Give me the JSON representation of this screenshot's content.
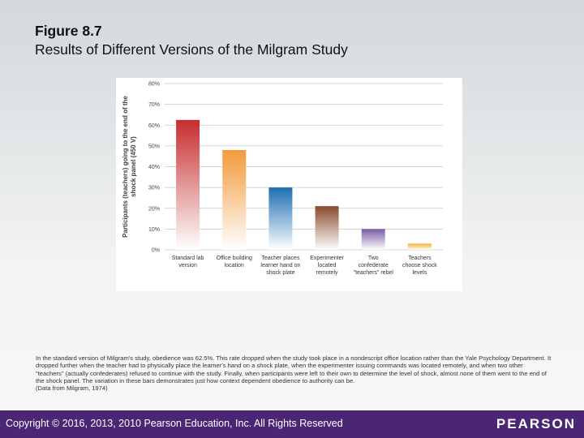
{
  "title": "Figure 8.7",
  "subtitle": "Results of Different Versions of the Milgram Study",
  "chart_data": {
    "type": "bar",
    "ylabel": "Participants (teachers) going to the end of the shock panel (450 V)",
    "ylim": [
      0,
      80
    ],
    "yticks": [
      "0%",
      "10%",
      "20%",
      "30%",
      "40%",
      "50%",
      "60%",
      "70%",
      "80%"
    ],
    "categories": [
      [
        "Standard lab",
        "version"
      ],
      [
        "Office building",
        "location"
      ],
      [
        "Teacher places",
        "learner hand on",
        "shock plate"
      ],
      [
        "Experimenter",
        "located",
        "remotely"
      ],
      [
        "Two",
        "confederate",
        "\"teachers\" rebel"
      ],
      [
        "Teachers",
        "choose shock",
        "levels"
      ]
    ],
    "values": [
      62.5,
      48,
      30,
      21,
      10,
      3
    ],
    "colors": [
      "#c62d2f",
      "#f29a3c",
      "#1f6fb5",
      "#8a4a2f",
      "#7c5aa8",
      "#f2b230"
    ],
    "grid": true
  },
  "caption": {
    "text": "In the standard version of Milgram's study, obedience was 62.5%. This rate dropped when the study took place in a nondescript office location rather than the Yale Psychology Department. It dropped further when the teacher had to physically place the learner's hand on a shock plate, when the experimenter issuing commands was located remotely, and when two other \"teachers\" (actually confederates) refused to continue with the study. Finally, when participants were left to their own to determine the level of shock, almost none of them went to the end of the shock panel. The variation in these bars demonstrates just how context dependent obedience to authority can be.",
    "source": "(Data from Milgram, 1974)"
  },
  "footer": {
    "copyright": "Copyright © 2016, 2013, 2010 Pearson Education, Inc. All Rights Reserved",
    "brand": "PEARSON"
  }
}
